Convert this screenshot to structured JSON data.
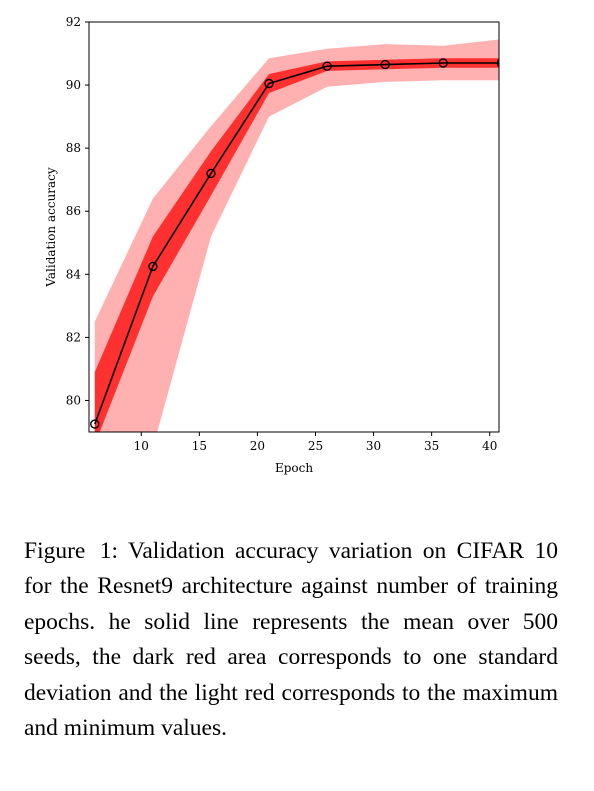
{
  "chart_data": {
    "type": "line",
    "xlabel": "Epoch",
    "ylabel": "Validation accuracy",
    "xlim": [
      5.5,
      40.8
    ],
    "ylim": [
      79.0,
      92.0
    ],
    "xticks": [
      10,
      15,
      20,
      25,
      30,
      35,
      40
    ],
    "yticks": [
      80,
      82,
      84,
      86,
      88,
      90,
      92
    ],
    "grid": false,
    "series": [
      {
        "x": [
          6,
          11,
          16,
          21,
          26,
          31,
          36,
          41
        ],
        "mean": [
          79.25,
          84.25,
          87.2,
          90.05,
          90.6,
          90.65,
          90.7,
          90.7
        ],
        "std_lower": [
          78.6,
          83.3,
          86.5,
          89.75,
          90.45,
          90.5,
          90.55,
          90.55
        ],
        "std_upper": [
          80.9,
          85.2,
          87.9,
          90.35,
          90.75,
          90.8,
          90.85,
          90.85
        ],
        "min": [
          76.0,
          78.5,
          85.2,
          89.0,
          89.95,
          90.1,
          90.15,
          90.15
        ],
        "max": [
          82.5,
          86.4,
          88.7,
          90.85,
          91.15,
          91.3,
          91.25,
          91.45
        ],
        "line_color": "#000000",
        "std_color": "#ff3030",
        "minmax_color": "#ffb0b0"
      }
    ]
  },
  "caption": {
    "label": "Figure 1:",
    "text": "Validation accuracy variation on CIFAR 10 for the Resnet9 architecture against number of training epochs. he solid line represents the mean over 500 seeds, the dark red area corresponds to one standard deviation and the light red corresponds to the maximum and minimum values."
  }
}
